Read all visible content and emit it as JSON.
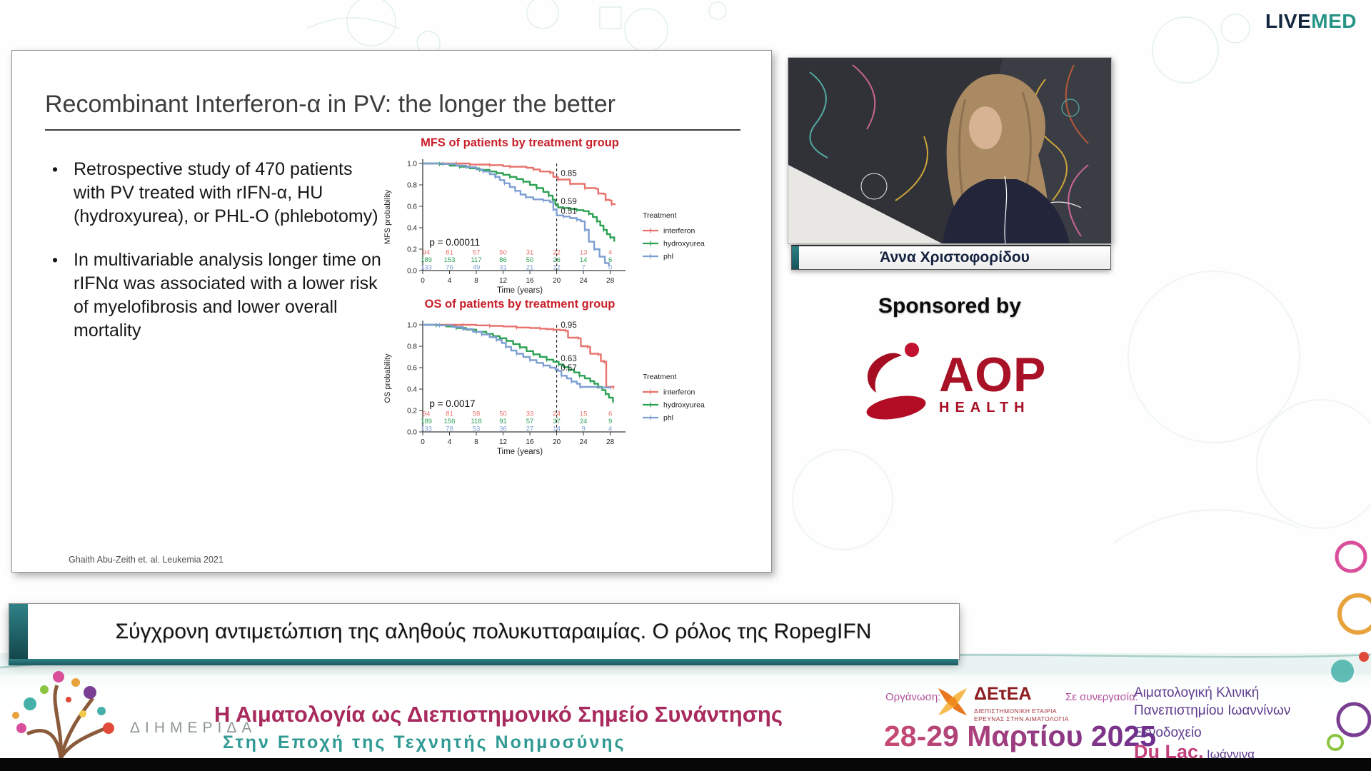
{
  "branding": {
    "live": "LIVE",
    "med": "MED"
  },
  "slide": {
    "title": "Recombinant Interferon-α in PV: the longer the better",
    "bullets": [
      "Retrospective study of 470 patients with PV treated with rIFN-α, HU (hydroxyurea), or PHL-O (phlebotomy)",
      "In multivariable analysis longer time on rIFNα was associated with a lower risk of myelofibrosis and lower overall mortality"
    ],
    "citation": "Ghaith Abu-Zeith et. al. Leukemia 2021"
  },
  "chart_data": [
    {
      "type": "line",
      "title": "MFS of patients by treatment group",
      "xlabel": "Time (years)",
      "ylabel": "MFS probability",
      "xlim": [
        0,
        29
      ],
      "ylim": [
        0,
        1
      ],
      "xticks": [
        0,
        4,
        8,
        12,
        16,
        20,
        24,
        28
      ],
      "yticks": [
        1.0,
        0.8,
        0.6,
        0.4,
        0.2,
        0.0
      ],
      "p_text": "p = 0.00011",
      "dashed_x": 20,
      "legend_title": "Treatment",
      "legend_position": "right",
      "annotations": [
        {
          "x": 20.4,
          "y": 0.885,
          "text": "0.85"
        },
        {
          "x": 20.4,
          "y": 0.62,
          "text": "0.59"
        },
        {
          "x": 20.4,
          "y": 0.53,
          "text": "0.51"
        }
      ],
      "series": [
        {
          "name": "interferon",
          "color": "#e8736d",
          "points": [
            [
              0,
              1
            ],
            [
              5,
              1
            ],
            [
              7,
              0.99
            ],
            [
              10,
              0.985
            ],
            [
              12,
              0.975
            ],
            [
              13,
              0.97
            ],
            [
              15.5,
              0.96
            ],
            [
              16.5,
              0.945
            ],
            [
              17.5,
              0.925
            ],
            [
              19,
              0.915
            ],
            [
              19.5,
              0.875
            ],
            [
              20.2,
              0.85
            ],
            [
              21.6,
              0.85
            ],
            [
              22,
              0.81
            ],
            [
              23.8,
              0.81
            ],
            [
              24.2,
              0.77
            ],
            [
              25.8,
              0.765
            ],
            [
              26.2,
              0.72
            ],
            [
              27,
              0.715
            ],
            [
              27.3,
              0.66
            ],
            [
              27.9,
              0.655
            ],
            [
              28.2,
              0.62
            ],
            [
              28.8,
              0.62
            ]
          ],
          "at_risk": [
            94,
            81,
            57,
            50,
            31,
            22,
            13,
            4
          ]
        },
        {
          "name": "hydroxyurea",
          "color": "#2da154",
          "points": [
            [
              0,
              1
            ],
            [
              2.5,
              0.995
            ],
            [
              4,
              0.98
            ],
            [
              5.5,
              0.97
            ],
            [
              7,
              0.955
            ],
            [
              8.5,
              0.94
            ],
            [
              10,
              0.925
            ],
            [
              11,
              0.91
            ],
            [
              12,
              0.895
            ],
            [
              13,
              0.875
            ],
            [
              14,
              0.855
            ],
            [
              15,
              0.83
            ],
            [
              16,
              0.8
            ],
            [
              17,
              0.77
            ],
            [
              18,
              0.735
            ],
            [
              18.8,
              0.7
            ],
            [
              19.4,
              0.66
            ],
            [
              19.8,
              0.62
            ],
            [
              20.2,
              0.59
            ],
            [
              21,
              0.585
            ],
            [
              22,
              0.575
            ],
            [
              23,
              0.565
            ],
            [
              24,
              0.555
            ],
            [
              24.8,
              0.53
            ],
            [
              25.4,
              0.5
            ],
            [
              26,
              0.46
            ],
            [
              26.5,
              0.42
            ],
            [
              27,
              0.38
            ],
            [
              27.5,
              0.34
            ],
            [
              28,
              0.31
            ],
            [
              28.6,
              0.27
            ]
          ],
          "at_risk": [
            189,
            153,
            117,
            86,
            50,
            26,
            14,
            6
          ]
        },
        {
          "name": "phl",
          "color": "#7e9fd2",
          "points": [
            [
              0,
              1
            ],
            [
              3,
              0.995
            ],
            [
              5,
              0.98
            ],
            [
              6.5,
              0.965
            ],
            [
              8,
              0.945
            ],
            [
              9,
              0.925
            ],
            [
              10,
              0.9
            ],
            [
              10.8,
              0.875
            ],
            [
              11.5,
              0.845
            ],
            [
              12.2,
              0.815
            ],
            [
              13,
              0.78
            ],
            [
              13.8,
              0.745
            ],
            [
              14.6,
              0.71
            ],
            [
              15.4,
              0.685
            ],
            [
              16.5,
              0.665
            ],
            [
              18,
              0.655
            ],
            [
              19,
              0.64
            ],
            [
              19.5,
              0.57
            ],
            [
              20,
              0.515
            ],
            [
              21,
              0.505
            ],
            [
              22,
              0.49
            ],
            [
              23,
              0.475
            ],
            [
              23.6,
              0.46
            ],
            [
              24.2,
              0.38
            ],
            [
              24.8,
              0.27
            ],
            [
              25.6,
              0.2
            ],
            [
              26.4,
              0.13
            ],
            [
              27.2,
              0.07
            ],
            [
              27.8,
              0.04
            ]
          ],
          "at_risk": [
            133,
            76,
            49,
            31,
            21,
            12,
            7,
            0
          ]
        }
      ]
    },
    {
      "type": "line",
      "title": "OS of patients by treatment group",
      "xlabel": "Time (years)",
      "ylabel": "OS probability",
      "xlim": [
        0,
        29
      ],
      "ylim": [
        0,
        1
      ],
      "xticks": [
        0,
        4,
        8,
        12,
        16,
        20,
        24,
        28
      ],
      "yticks": [
        1.0,
        0.8,
        0.6,
        0.4,
        0.2,
        0.0
      ],
      "p_text": "p = 0.0017",
      "dashed_x": 20,
      "legend_title": "Treatment",
      "legend_position": "right",
      "annotations": [
        {
          "x": 20.4,
          "y": 0.975,
          "text": "0.95"
        },
        {
          "x": 20.4,
          "y": 0.66,
          "text": "0.63"
        },
        {
          "x": 20.4,
          "y": 0.575,
          "text": "0.57"
        }
      ],
      "series": [
        {
          "name": "interferon",
          "color": "#e8736d",
          "points": [
            [
              0,
              1
            ],
            [
              6,
              1
            ],
            [
              8,
              0.995
            ],
            [
              10,
              0.99
            ],
            [
              12,
              0.985
            ],
            [
              14,
              0.975
            ],
            [
              16,
              0.97
            ],
            [
              17.5,
              0.965
            ],
            [
              18.5,
              0.96
            ],
            [
              19.5,
              0.955
            ],
            [
              20.5,
              0.95
            ],
            [
              21.3,
              0.945
            ],
            [
              21.7,
              0.88
            ],
            [
              23.2,
              0.875
            ],
            [
              23.6,
              0.8
            ],
            [
              24.6,
              0.795
            ],
            [
              25,
              0.73
            ],
            [
              26.2,
              0.725
            ],
            [
              26.6,
              0.66
            ],
            [
              27.1,
              0.655
            ],
            [
              27.4,
              0.42
            ],
            [
              28.5,
              0.415
            ]
          ],
          "at_risk": [
            94,
            81,
            58,
            50,
            33,
            24,
            15,
            6
          ]
        },
        {
          "name": "hydroxyurea",
          "color": "#2da154",
          "points": [
            [
              0,
              1
            ],
            [
              2,
              0.995
            ],
            [
              3.5,
              0.985
            ],
            [
              5,
              0.97
            ],
            [
              6.5,
              0.955
            ],
            [
              8,
              0.935
            ],
            [
              9.5,
              0.915
            ],
            [
              10.5,
              0.895
            ],
            [
              11.5,
              0.875
            ],
            [
              12.5,
              0.85
            ],
            [
              13.5,
              0.82
            ],
            [
              14.5,
              0.79
            ],
            [
              15.5,
              0.755
            ],
            [
              16.5,
              0.725
            ],
            [
              17.5,
              0.7
            ],
            [
              18.5,
              0.675
            ],
            [
              19.5,
              0.655
            ],
            [
              20.3,
              0.63
            ],
            [
              21,
              0.605
            ],
            [
              21.8,
              0.58
            ],
            [
              22.6,
              0.555
            ],
            [
              23.4,
              0.525
            ],
            [
              24.2,
              0.5
            ],
            [
              25,
              0.475
            ],
            [
              25.6,
              0.45
            ],
            [
              26.2,
              0.42
            ],
            [
              26.8,
              0.39
            ],
            [
              27.3,
              0.355
            ],
            [
              27.8,
              0.32
            ],
            [
              28.4,
              0.28
            ]
          ],
          "at_risk": [
            189,
            156,
            118,
            91,
            57,
            37,
            24,
            9
          ]
        },
        {
          "name": "phl",
          "color": "#7e9fd2",
          "points": [
            [
              0,
              1
            ],
            [
              2.5,
              0.995
            ],
            [
              4.5,
              0.98
            ],
            [
              6,
              0.96
            ],
            [
              7.5,
              0.935
            ],
            [
              8.8,
              0.91
            ],
            [
              10,
              0.885
            ],
            [
              11,
              0.86
            ],
            [
              11.8,
              0.83
            ],
            [
              12.4,
              0.795
            ],
            [
              13.2,
              0.76
            ],
            [
              14,
              0.73
            ],
            [
              15,
              0.7
            ],
            [
              16,
              0.67
            ],
            [
              17,
              0.645
            ],
            [
              18,
              0.62
            ],
            [
              19,
              0.6
            ],
            [
              19.8,
              0.585
            ],
            [
              20.2,
              0.57
            ],
            [
              20.7,
              0.525
            ],
            [
              21.5,
              0.5
            ],
            [
              22.2,
              0.47
            ],
            [
              23,
              0.45
            ],
            [
              23.5,
              0.42
            ],
            [
              26,
              0.415
            ],
            [
              28,
              0.41
            ]
          ],
          "at_risk": [
            133,
            78,
            53,
            36,
            27,
            14,
            9,
            4
          ]
        }
      ]
    }
  ],
  "speaker": {
    "name": "Άννα Χριστοφορίδου"
  },
  "sponsor": {
    "label": "Sponsored by",
    "brand": "AOP",
    "brand_sub": "HEALTH",
    "brand_color": "#a81126"
  },
  "session_banner": {
    "title": "Σύγχρονη αντιμετώπιση της αληθούς πολυκυτταραιμίας. Ο ρόλος της RopegIFN"
  },
  "footer": {
    "event_type": "ΔΙΗΜΕΡΙΔΑ",
    "title": "Η Αιματολογία ως Διεπιστημονικό Σημείο Συνάντησης",
    "subtitle": "Στην Εποχή της Τεχνητής Νοημοσύνης",
    "organizer_label": "Οργάνωση:",
    "organizer_acronym": "ΔΕτΕΑ",
    "organizer_full_1": "ΔΙΕΠΙΣΤΗΜΟΝΙΚΗ ΕΤΑΙΡΙΑ",
    "organizer_full_2": "ΕΡΕΥΝΑΣ ΣΤΗΝ ΑΙΜΑΤΟΛΟΓΙΑ",
    "partner_label": "Σε συνεργασία:",
    "partner_line_1": "Αιματολογική Κλινική",
    "partner_line_2": "Πανεπιστημίου Ιωαννίνων",
    "dates": "28-29 Μαρτίου 2025",
    "venue_line": "Ξενοδοχείο",
    "venue_name": "Du Lac,",
    "venue_city": "Ιωάννινα"
  },
  "colors": {
    "chart_title_red": "#c9202a",
    "livemed_navy": "#14273f",
    "livemed_teal": "#279486",
    "banner_teal": "#2e8186",
    "footer_magenta": "#a8295d",
    "footer_teal": "#2f9a93",
    "footer_purple": "#5f3a8e"
  }
}
